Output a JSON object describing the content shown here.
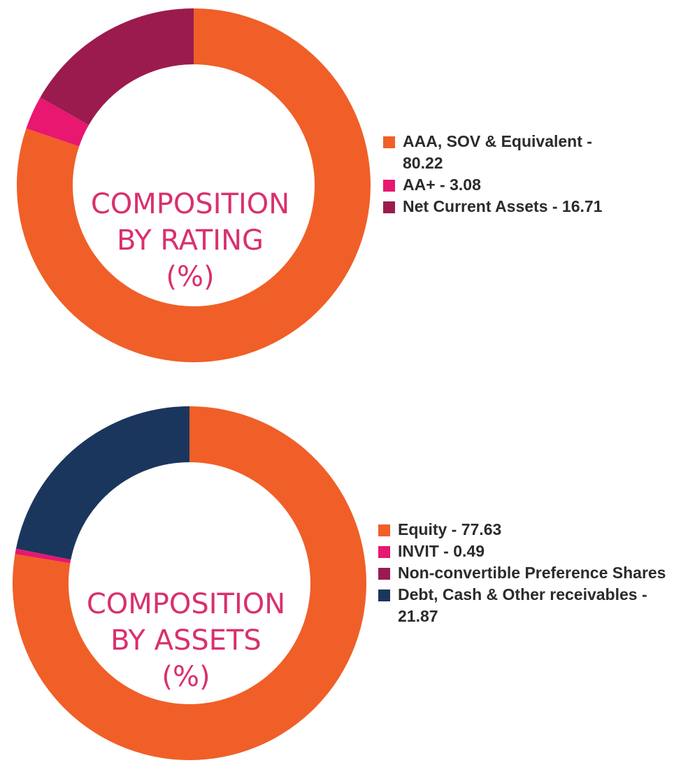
{
  "chart_data": [
    {
      "type": "pie",
      "title": "COMPOSITION BY RATING (%)",
      "center_label": [
        "COMPOSITION",
        "BY RATING",
        "(%)"
      ],
      "categories": [
        "AAA, SOV & Equivalent",
        "AA+",
        "Net Current Assets"
      ],
      "values": [
        80.22,
        3.08,
        16.71
      ],
      "colors": [
        "#f05f28",
        "#e8176f",
        "#9b1b4e"
      ],
      "legend_labels": [
        "AAA, SOV & Equivalent - 80.22",
        "AA+ - 3.08",
        "Net Current Assets - 16.71"
      ],
      "legend_position": "right",
      "style": "donut"
    },
    {
      "type": "pie",
      "title": "COMPOSITION BY ASSETS (%)",
      "center_label": [
        "COMPOSITION",
        "BY ASSETS",
        "(%)"
      ],
      "categories": [
        "Equity",
        "INVIT",
        "Non-convertible Preference Shares",
        "Debt, Cash & Other receivables"
      ],
      "values": [
        77.63,
        0.49,
        0.01,
        21.87
      ],
      "colors": [
        "#f05f28",
        "#e8176f",
        "#9b1b4e",
        "#1b365d"
      ],
      "legend_labels": [
        "Equity - 77.63",
        "INVIT - 0.49",
        "Non-convertible Preference Shares",
        "Debt, Cash & Other receivables - 21.87"
      ],
      "legend_position": "right",
      "style": "donut"
    }
  ]
}
